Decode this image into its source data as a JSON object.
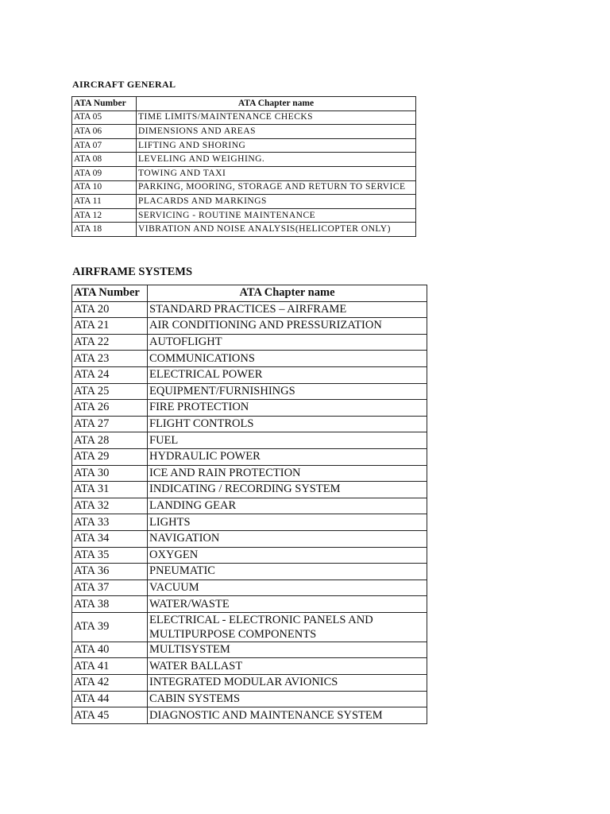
{
  "sections": [
    {
      "title": "AIRCRAFT GENERAL",
      "headers": [
        "ATA Number",
        "ATA Chapter name"
      ],
      "rows": [
        [
          "ATA 05",
          "TIME LIMITS/MAINTENANCE CHECKS"
        ],
        [
          "ATA 06",
          "DIMENSIONS AND AREAS"
        ],
        [
          "ATA 07",
          "LIFTING AND SHORING"
        ],
        [
          "ATA 08",
          "LEVELING AND WEIGHING."
        ],
        [
          "ATA 09",
          "TOWING AND TAXI"
        ],
        [
          "ATA 10",
          "PARKING, MOORING, STORAGE AND RETURN TO SERVICE"
        ],
        [
          "ATA 11",
          "PLACARDS AND MARKINGS"
        ],
        [
          "ATA 12",
          "SERVICING - ROUTINE MAINTENANCE"
        ],
        [
          "ATA 18",
          "VIBRATION AND NOISE ANALYSIS(HELICOPTER ONLY)"
        ]
      ]
    },
    {
      "title": "AIRFRAME SYSTEMS",
      "headers": [
        "ATA Number",
        "ATA Chapter name"
      ],
      "rows": [
        [
          "ATA 20",
          "STANDARD PRACTICES – AIRFRAME"
        ],
        [
          "ATA 21",
          "AIR CONDITIONING AND PRESSURIZATION"
        ],
        [
          "ATA 22",
          "AUTOFLIGHT"
        ],
        [
          "ATA 23",
          "COMMUNICATIONS"
        ],
        [
          "ATA 24",
          "ELECTRICAL POWER"
        ],
        [
          "ATA 25",
          "EQUIPMENT/FURNISHINGS"
        ],
        [
          "ATA 26",
          "FIRE PROTECTION"
        ],
        [
          "ATA 27",
          "FLIGHT CONTROLS"
        ],
        [
          "ATA 28",
          "FUEL"
        ],
        [
          "ATA 29",
          "HYDRAULIC POWER"
        ],
        [
          "ATA 30",
          "ICE AND RAIN PROTECTION"
        ],
        [
          "ATA 31",
          "INDICATING / RECORDING SYSTEM"
        ],
        [
          "ATA 32",
          "LANDING GEAR"
        ],
        [
          "ATA 33",
          "LIGHTS"
        ],
        [
          "ATA 34",
          "NAVIGATION"
        ],
        [
          "ATA 35",
          "OXYGEN"
        ],
        [
          "ATA 36",
          "PNEUMATIC"
        ],
        [
          "ATA 37",
          "VACUUM"
        ],
        [
          "ATA 38",
          "WATER/WASTE"
        ],
        [
          "ATA 39",
          "ELECTRICAL - ELECTRONIC PANELS AND MULTIPURPOSE COMPONENTS"
        ],
        [
          "ATA 40",
          "MULTISYSTEM"
        ],
        [
          "ATA 41",
          "WATER BALLAST"
        ],
        [
          "ATA 42",
          "INTEGRATED MODULAR AVIONICS"
        ],
        [
          "ATA 44",
          "CABIN SYSTEMS"
        ],
        [
          "ATA 45",
          "DIAGNOSTIC AND MAINTENANCE SYSTEM"
        ]
      ]
    }
  ]
}
